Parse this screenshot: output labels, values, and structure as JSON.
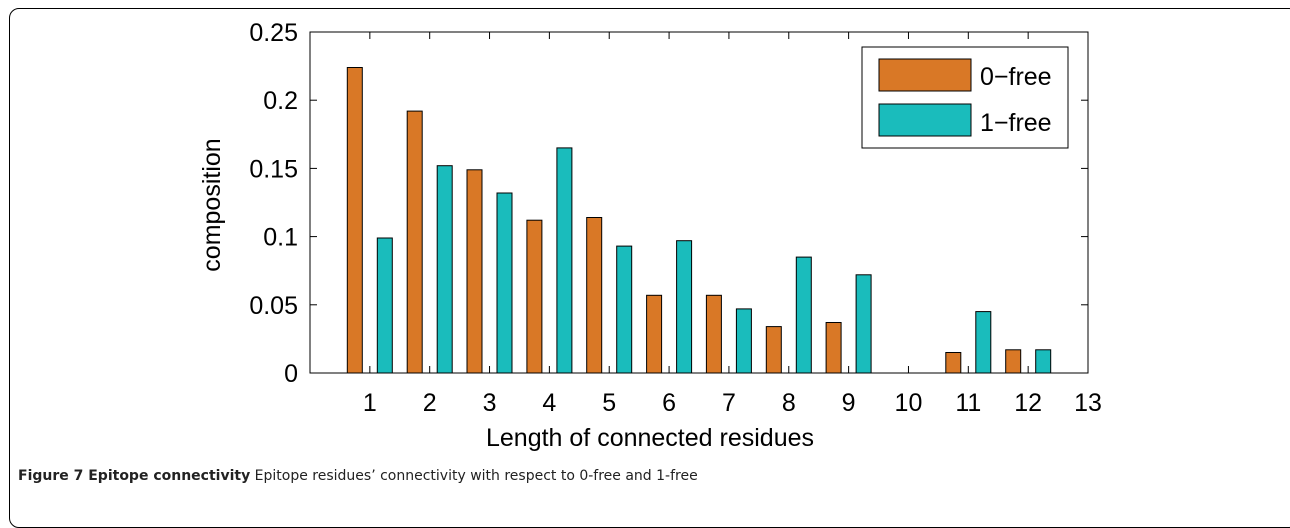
{
  "caption": {
    "label": "Figure 7 Epitope connectivity",
    "text": "Epitope residues’ connectivity with respect to 0-free and 1-free"
  },
  "chart_data": {
    "type": "bar",
    "xlabel": "Length of connected residues",
    "ylabel": "composition",
    "xlim": [
      0,
      13
    ],
    "ylim": [
      0,
      0.25
    ],
    "xticks": [
      "1",
      "2",
      "3",
      "4",
      "5",
      "6",
      "7",
      "8",
      "9",
      "10",
      "11",
      "12",
      "13"
    ],
    "yticks": [
      "0",
      "0.05",
      "0.1",
      "0.15",
      "0.2",
      "0.25"
    ],
    "categories": [
      1,
      2,
      3,
      4,
      5,
      6,
      7,
      8,
      9,
      10,
      11,
      12
    ],
    "series": [
      {
        "name": "0−free",
        "color": "#D97826",
        "values": [
          0.224,
          0.192,
          0.149,
          0.112,
          0.114,
          0.057,
          0.057,
          0.034,
          0.037,
          0,
          0.015,
          0.017
        ]
      },
      {
        "name": "1−free",
        "color": "#1ABCBC",
        "values": [
          0.099,
          0.152,
          0.132,
          0.165,
          0.093,
          0.097,
          0.047,
          0.085,
          0.072,
          0,
          0.045,
          0.017
        ]
      }
    ],
    "grid": false,
    "legend_position": "top-right"
  }
}
